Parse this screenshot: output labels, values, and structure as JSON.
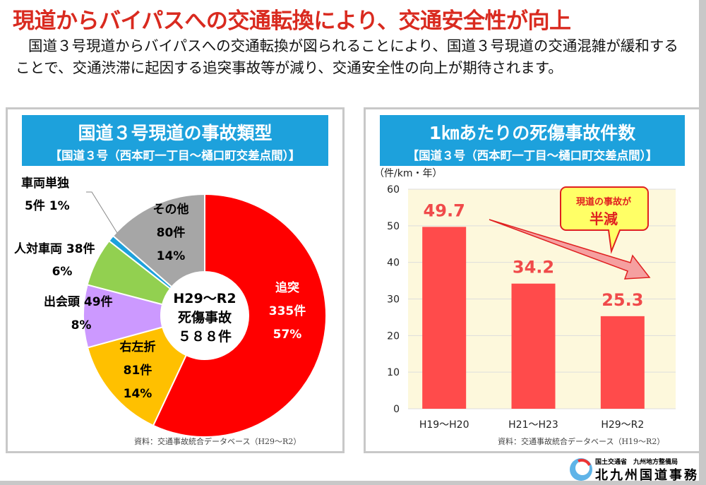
{
  "title": "現道からバイパスへの交通転換により、交通安全性が向上",
  "intro": "国道３号現道からバイパスへの交通転換が図られることにより、国道３号現道の交通混雑が緩和することで、交通渋滞に起因する追突事故等が減り、交通安全性の向上が期待されます。",
  "chart_data": [
    {
      "type": "pie",
      "donut": true,
      "title": "国道３号現道の事故類型",
      "subtitle": "【国道３号（西本町一丁目～樋口町交差点間）】",
      "center_label": [
        "H29～R2",
        "死傷事故",
        "５８８件"
      ],
      "slices": [
        {
          "name": "追突",
          "count_label": "335件",
          "value": 335,
          "percent_label": "57%",
          "color": "#ff0000"
        },
        {
          "name": "右左折",
          "count_label": "81件",
          "value": 81,
          "percent_label": "14%",
          "color": "#ffc000"
        },
        {
          "name": "出会頭",
          "count_label": "49件",
          "value": 49,
          "percent_label": "8%",
          "color": "#cc99ff"
        },
        {
          "name": "人対車両",
          "count_label": "38件",
          "value": 38,
          "percent_label": "6%",
          "color": "#92d050"
        },
        {
          "name": "車両単独",
          "count_label": "5件",
          "value": 5,
          "percent_label": "1%",
          "color": "#1da1dc"
        },
        {
          "name": "その他",
          "count_label": "80件",
          "value": 80,
          "percent_label": "14%",
          "color": "#a6a6a6"
        }
      ],
      "source": "資料：交通事故統合データベース（H29～R2）"
    },
    {
      "type": "bar",
      "title": "1㎞あたりの死傷事故件数",
      "subtitle": "【国道３号（西本町一丁目～樋口町交差点間）】",
      "ylabel": "（件/km・年）",
      "ylim": [
        0,
        60
      ],
      "yticks": [
        0,
        10,
        20,
        30,
        40,
        50,
        60
      ],
      "grid": true,
      "categories": [
        "H19～H20",
        "H21～H23",
        "H29～R2"
      ],
      "values": [
        49.7,
        34.2,
        25.3
      ],
      "value_labels": [
        "49.7",
        "34.2",
        "25.3"
      ],
      "bar_color": "#ff4b4b",
      "plot_bg": "#fdf8dc",
      "callout": [
        "現道の事故が",
        "半減"
      ],
      "source": "資料：交通事故統合データベース（H19～R2）"
    }
  ],
  "logo": {
    "ministry": "国土交通省　九州地方整備局",
    "office": "北九州国道事務所"
  }
}
